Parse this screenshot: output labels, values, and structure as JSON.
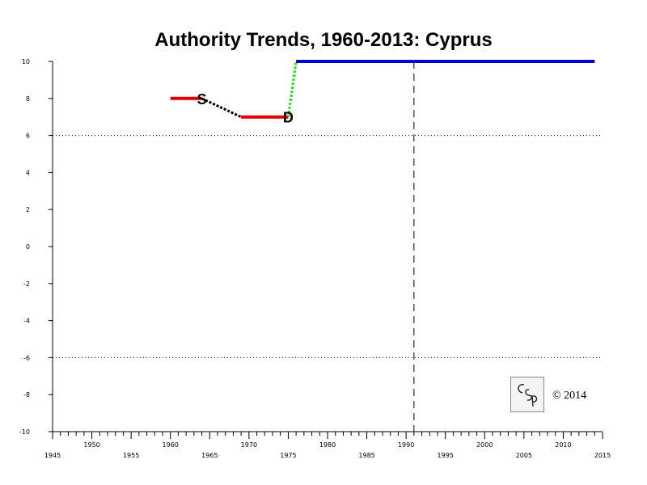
{
  "chart_data": {
    "type": "line",
    "title": "Authority Trends, 1960-2013: Cyprus",
    "xlim": [
      1945,
      2015
    ],
    "ylim": [
      -10,
      10
    ],
    "x_tick_labels": [
      "1945",
      "1950",
      "1955",
      "1960",
      "1965",
      "1970",
      "1975",
      "1980",
      "1985",
      "1990",
      "1995",
      "2000",
      "2005",
      "2010",
      "2015"
    ],
    "y_tick_labels": [
      "10",
      "8",
      "6",
      "4",
      "2",
      "0",
      "-2",
      "-4",
      "-6",
      "-8",
      "-10"
    ],
    "reference_lines": [
      {
        "axis": "y",
        "value": 6,
        "style": "dotted"
      },
      {
        "axis": "y",
        "value": -6,
        "style": "dotted"
      },
      {
        "axis": "x",
        "value": 1991,
        "style": "dashed"
      }
    ],
    "series": [
      {
        "color": "#e00000",
        "style": "solid",
        "points": [
          [
            1960,
            8
          ],
          [
            1964,
            8
          ]
        ]
      },
      {
        "color": "#000000",
        "style": "dotted",
        "points": [
          [
            1964,
            8
          ],
          [
            1969,
            7
          ]
        ]
      },
      {
        "color": "#e00000",
        "style": "solid",
        "points": [
          [
            1969,
            7
          ],
          [
            1975,
            7
          ]
        ]
      },
      {
        "color": "#22dd22",
        "style": "dotted",
        "points": [
          [
            1975,
            7
          ],
          [
            1976,
            10
          ]
        ]
      },
      {
        "color": "#0000cc",
        "style": "solid",
        "points": [
          [
            1976,
            10
          ],
          [
            2014,
            10
          ]
        ]
      }
    ],
    "annotations": [
      {
        "text": "S",
        "x": 1964,
        "y": 8
      },
      {
        "text": "D",
        "x": 1975,
        "y": 7
      }
    ]
  },
  "logo": {
    "text": "CSP"
  },
  "copyright": "© 2014"
}
